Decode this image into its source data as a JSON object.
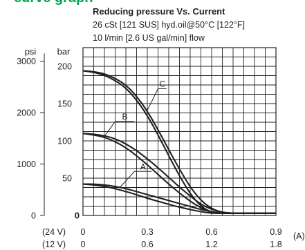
{
  "header_fragment": "curve graph",
  "header_color": "#00a651",
  "chart_data": {
    "type": "line",
    "title": "Reducing pressure Vs. Current",
    "subtitle_lines": [
      "26 cSt [121 SUS] hyd.oil@50°C [122°F]",
      "10 l/min [2.6 US gal/min] flow"
    ],
    "y_primary": {
      "unit": "bar",
      "range": [
        0,
        225
      ],
      "ticks": [
        {
          "value": 0,
          "label": "0"
        },
        {
          "value": 50,
          "label": "50"
        },
        {
          "value": 100,
          "label": "100"
        },
        {
          "value": 150,
          "label": "150"
        },
        {
          "value": 200,
          "label": "200"
        }
      ]
    },
    "y_secondary": {
      "unit": "psi",
      "ticks": [
        {
          "value": 0,
          "label": "0"
        },
        {
          "value": 1000,
          "label": "1000"
        },
        {
          "value": 2000,
          "label": "2000"
        },
        {
          "value": 3000,
          "label": "3000"
        }
      ]
    },
    "x_axis": {
      "unit": "(A)",
      "range": [
        0,
        0.9
      ],
      "rows": [
        {
          "label": "(24 V)",
          "ticks": [
            {
              "value": 0,
              "label": "0"
            },
            {
              "value": 0.3,
              "label": "0.3"
            },
            {
              "value": 0.6,
              "label": "0.6"
            },
            {
              "value": 0.9,
              "label": "0.9"
            }
          ]
        },
        {
          "label": "(12 V)",
          "ticks": [
            {
              "value": 0,
              "label": "0"
            },
            {
              "value": 0.3,
              "label": "0.6"
            },
            {
              "value": 0.6,
              "label": "1.2"
            },
            {
              "value": 0.9,
              "label": "1.8"
            }
          ]
        }
      ]
    },
    "grid": true,
    "line_color": "#231f20",
    "series": [
      {
        "label": "C",
        "upper": [
          [
            0,
            194
          ],
          [
            0.05,
            193
          ],
          [
            0.1,
            190
          ],
          [
            0.15,
            184
          ],
          [
            0.2,
            175
          ],
          [
            0.25,
            160
          ],
          [
            0.3,
            140
          ],
          [
            0.35,
            115
          ],
          [
            0.4,
            88
          ],
          [
            0.45,
            62
          ],
          [
            0.5,
            38
          ],
          [
            0.55,
            20
          ],
          [
            0.6,
            9
          ],
          [
            0.65,
            4
          ],
          [
            0.7,
            3
          ],
          [
            0.75,
            3
          ],
          [
            0.8,
            3
          ],
          [
            0.85,
            3
          ],
          [
            0.9,
            3
          ]
        ],
        "lower": [
          [
            0,
            194
          ],
          [
            0.05,
            192
          ],
          [
            0.1,
            188
          ],
          [
            0.15,
            181
          ],
          [
            0.2,
            171
          ],
          [
            0.25,
            155
          ],
          [
            0.3,
            134
          ],
          [
            0.35,
            108
          ],
          [
            0.4,
            80
          ],
          [
            0.45,
            53
          ],
          [
            0.5,
            29
          ],
          [
            0.55,
            12
          ],
          [
            0.6,
            4
          ],
          [
            0.65,
            3
          ],
          [
            0.7,
            3
          ],
          [
            0.75,
            3
          ],
          [
            0.8,
            3
          ],
          [
            0.85,
            3
          ],
          [
            0.9,
            3
          ]
        ]
      },
      {
        "label": "B",
        "upper": [
          [
            0,
            110
          ],
          [
            0.05,
            109
          ],
          [
            0.1,
            107
          ],
          [
            0.15,
            103
          ],
          [
            0.2,
            96
          ],
          [
            0.25,
            87
          ],
          [
            0.3,
            76
          ],
          [
            0.35,
            64
          ],
          [
            0.4,
            51
          ],
          [
            0.45,
            38
          ],
          [
            0.5,
            26
          ],
          [
            0.55,
            15
          ],
          [
            0.6,
            8
          ],
          [
            0.65,
            4
          ],
          [
            0.7,
            3
          ],
          [
            0.75,
            3
          ],
          [
            0.8,
            3
          ],
          [
            0.85,
            3
          ],
          [
            0.9,
            3
          ]
        ],
        "lower": [
          [
            0,
            110
          ],
          [
            0.05,
            108
          ],
          [
            0.1,
            105
          ],
          [
            0.15,
            99
          ],
          [
            0.2,
            91
          ],
          [
            0.25,
            80
          ],
          [
            0.3,
            68
          ],
          [
            0.35,
            55
          ],
          [
            0.4,
            42
          ],
          [
            0.45,
            30
          ],
          [
            0.5,
            19
          ],
          [
            0.55,
            10
          ],
          [
            0.6,
            4
          ],
          [
            0.65,
            3
          ],
          [
            0.7,
            3
          ],
          [
            0.75,
            3
          ],
          [
            0.8,
            3
          ],
          [
            0.85,
            3
          ],
          [
            0.9,
            3
          ]
        ]
      },
      {
        "label": "A",
        "upper": [
          [
            0,
            42
          ],
          [
            0.05,
            42
          ],
          [
            0.1,
            41
          ],
          [
            0.15,
            39
          ],
          [
            0.2,
            36
          ],
          [
            0.25,
            32
          ],
          [
            0.3,
            28
          ],
          [
            0.35,
            24
          ],
          [
            0.4,
            20
          ],
          [
            0.45,
            16
          ],
          [
            0.5,
            12
          ],
          [
            0.55,
            8
          ],
          [
            0.6,
            5
          ],
          [
            0.65,
            3
          ],
          [
            0.7,
            3
          ],
          [
            0.75,
            3
          ],
          [
            0.8,
            3
          ],
          [
            0.85,
            3
          ],
          [
            0.9,
            3
          ]
        ],
        "lower": [
          [
            0,
            42
          ],
          [
            0.05,
            41
          ],
          [
            0.1,
            39
          ],
          [
            0.15,
            36
          ],
          [
            0.2,
            32
          ],
          [
            0.25,
            28
          ],
          [
            0.3,
            23
          ],
          [
            0.35,
            19
          ],
          [
            0.4,
            15
          ],
          [
            0.45,
            11
          ],
          [
            0.5,
            8
          ],
          [
            0.55,
            5
          ],
          [
            0.6,
            3
          ],
          [
            0.65,
            3
          ],
          [
            0.7,
            3
          ],
          [
            0.75,
            3
          ],
          [
            0.8,
            3
          ],
          [
            0.85,
            3
          ],
          [
            0.9,
            3
          ]
        ]
      }
    ]
  }
}
